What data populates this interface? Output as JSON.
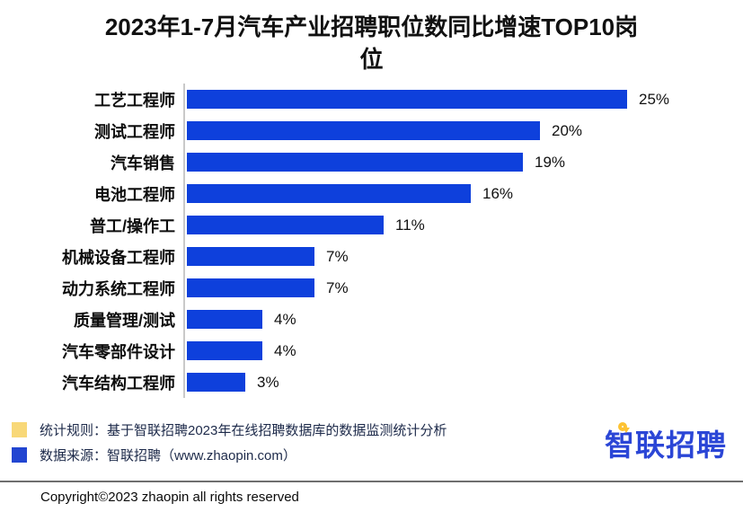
{
  "title": {
    "lines": [
      "2023年1-7月汽车产业招聘职位数同比增速TOP10岗",
      "位"
    ]
  },
  "chart_data": {
    "type": "bar",
    "orientation": "horizontal",
    "title": "2023年1-7月汽车产业招聘职位数同比增速TOP10岗位",
    "categories": [
      "工艺工程师",
      "测试工程师",
      "汽车销售",
      "电池工程师",
      "普工/操作工",
      "机械设备工程师",
      "动力系统工程师",
      "质量管理/测试",
      "汽车零部件设计",
      "汽车结构工程师"
    ],
    "values": [
      25,
      20,
      19,
      16,
      11,
      7,
      7,
      4,
      4,
      3
    ],
    "value_labels": [
      "25%",
      "20%",
      "19%",
      "16%",
      "11%",
      "7%",
      "7%",
      "4%",
      "4%",
      "3%"
    ],
    "unit": "%",
    "xlim": [
      0,
      25
    ],
    "grid": false,
    "legend": "none",
    "bar_color": "#0e40dc",
    "axis_color": "#c9c9c9",
    "value_label_position": "right-of-bar"
  },
  "footnotes": [
    {
      "swatch_color": "#f8d878",
      "text": "统计规则：基于智联招聘2023年在线招聘数据库的数据监测统计分析"
    },
    {
      "swatch_color": "#2245d1",
      "text": "数据来源：智联招聘（www.zhaopin.com）"
    }
  ],
  "logo": {
    "text": "智联招聘",
    "text_color": "#2b46d6",
    "pin_color": "#fdc232"
  },
  "footer": {
    "copyright": "Copyright©2023 zhaopin all rights reserved"
  }
}
